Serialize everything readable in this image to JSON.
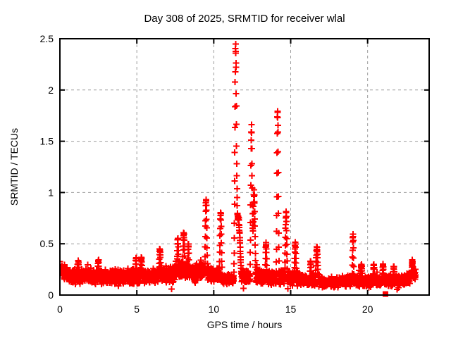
{
  "window": {
    "background": "#ffffff",
    "border_color": "#000000"
  },
  "chart_data": {
    "type": "scatter",
    "title": "Day 308 of 2025, SRMTID for receiver wlal",
    "xlabel": "GPS time / hours",
    "ylabel": "SRMTID / TECUs",
    "xlim": [
      0,
      24
    ],
    "ylim": [
      0,
      2.5
    ],
    "xticks": [
      0,
      5,
      10,
      15,
      20
    ],
    "xtick_labels": [
      "0",
      "5",
      "10",
      "15",
      "20"
    ],
    "yticks": [
      0,
      0.5,
      1,
      1.5,
      2,
      2.5
    ],
    "ytick_labels": [
      "0",
      "0.5",
      "1",
      "1.5",
      "2",
      "2.5"
    ],
    "grid": {
      "show": true,
      "color": "#9c9c9c",
      "dash": [
        4,
        4
      ]
    },
    "legend": "none",
    "marker": {
      "shape": "plus",
      "color": "#ff0000",
      "size": 9,
      "stroke_width": 2
    },
    "square_marker": {
      "shape": "filled-square",
      "color": "#ff0000",
      "size": 8
    },
    "square_points": [
      [
        21.16,
        0.01
      ]
    ],
    "sampling": {
      "start": 0,
      "end": 23.12,
      "step_hours": 0.0083333,
      "seed": 308
    },
    "baseline_keyframes": [
      [
        0.0,
        0.24,
        0.06
      ],
      [
        0.3,
        0.22,
        0.08
      ],
      [
        0.7,
        0.18,
        0.08
      ],
      [
        1.2,
        0.17,
        0.08
      ],
      [
        1.7,
        0.19,
        0.08
      ],
      [
        2.2,
        0.17,
        0.08
      ],
      [
        2.7,
        0.18,
        0.08
      ],
      [
        3.2,
        0.17,
        0.08
      ],
      [
        3.7,
        0.18,
        0.08
      ],
      [
        4.2,
        0.17,
        0.08
      ],
      [
        4.6,
        0.19,
        0.09
      ],
      [
        5.0,
        0.19,
        0.1
      ],
      [
        5.4,
        0.17,
        0.08
      ],
      [
        5.9,
        0.18,
        0.08
      ],
      [
        6.3,
        0.2,
        0.09
      ],
      [
        6.7,
        0.2,
        0.09
      ],
      [
        7.1,
        0.19,
        0.09
      ],
      [
        7.5,
        0.21,
        0.1
      ],
      [
        8.0,
        0.25,
        0.11
      ],
      [
        8.4,
        0.23,
        0.1
      ],
      [
        8.8,
        0.22,
        0.1
      ],
      [
        9.2,
        0.23,
        0.1
      ],
      [
        9.6,
        0.22,
        0.09
      ],
      [
        10.0,
        0.2,
        0.08
      ],
      [
        10.4,
        0.19,
        0.08
      ],
      [
        10.8,
        0.16,
        0.06
      ],
      [
        11.2,
        0.15,
        0.06
      ],
      [
        11.7,
        0.2,
        0.09
      ],
      [
        12.1,
        0.17,
        0.08
      ],
      [
        12.5,
        0.2,
        0.09
      ],
      [
        12.9,
        0.19,
        0.08
      ],
      [
        13.3,
        0.17,
        0.08
      ],
      [
        13.7,
        0.17,
        0.08
      ],
      [
        14.1,
        0.17,
        0.08
      ],
      [
        14.5,
        0.19,
        0.08
      ],
      [
        14.9,
        0.17,
        0.08
      ],
      [
        15.3,
        0.17,
        0.08
      ],
      [
        15.7,
        0.15,
        0.07
      ],
      [
        16.1,
        0.14,
        0.06
      ],
      [
        16.5,
        0.15,
        0.07
      ],
      [
        16.9,
        0.14,
        0.07
      ],
      [
        17.3,
        0.12,
        0.05
      ],
      [
        17.7,
        0.12,
        0.05
      ],
      [
        18.1,
        0.13,
        0.06
      ],
      [
        18.5,
        0.13,
        0.06
      ],
      [
        18.9,
        0.14,
        0.06
      ],
      [
        19.3,
        0.14,
        0.06
      ],
      [
        19.7,
        0.13,
        0.06
      ],
      [
        20.1,
        0.13,
        0.06
      ],
      [
        20.5,
        0.14,
        0.06
      ],
      [
        20.9,
        0.15,
        0.06
      ],
      [
        21.3,
        0.14,
        0.06
      ],
      [
        21.7,
        0.14,
        0.06
      ],
      [
        22.1,
        0.15,
        0.06
      ],
      [
        22.5,
        0.15,
        0.07
      ],
      [
        22.9,
        0.19,
        0.08
      ],
      [
        23.12,
        0.2,
        0.08
      ]
    ],
    "spikes": [
      [
        1.2,
        0.33,
        0.04
      ],
      [
        2.5,
        0.34,
        0.04
      ],
      [
        4.95,
        0.36,
        0.04
      ],
      [
        5.3,
        0.36,
        0.04
      ],
      [
        6.5,
        0.45,
        0.05
      ],
      [
        7.66,
        0.55,
        0.04
      ],
      [
        8.05,
        0.61,
        0.05
      ],
      [
        8.35,
        0.5,
        0.04
      ],
      [
        9.5,
        0.93,
        0.05
      ],
      [
        10.45,
        0.82,
        0.05
      ],
      [
        11.42,
        2.2,
        0.05
      ],
      [
        11.6,
        0.75,
        0.12
      ],
      [
        12.45,
        1.63,
        0.045
      ],
      [
        12.62,
        1.0,
        0.06
      ],
      [
        13.4,
        0.5,
        0.04
      ],
      [
        14.15,
        1.81,
        0.045
      ],
      [
        14.7,
        0.8,
        0.05
      ],
      [
        15.3,
        0.52,
        0.05
      ],
      [
        16.3,
        0.33,
        0.04
      ],
      [
        16.7,
        0.46,
        0.06
      ],
      [
        19.05,
        0.58,
        0.035
      ],
      [
        19.6,
        0.3,
        0.05
      ],
      [
        20.4,
        0.3,
        0.04
      ],
      [
        21.0,
        0.3,
        0.04
      ],
      [
        21.7,
        0.28,
        0.04
      ],
      [
        22.9,
        0.34,
        0.05
      ]
    ]
  }
}
